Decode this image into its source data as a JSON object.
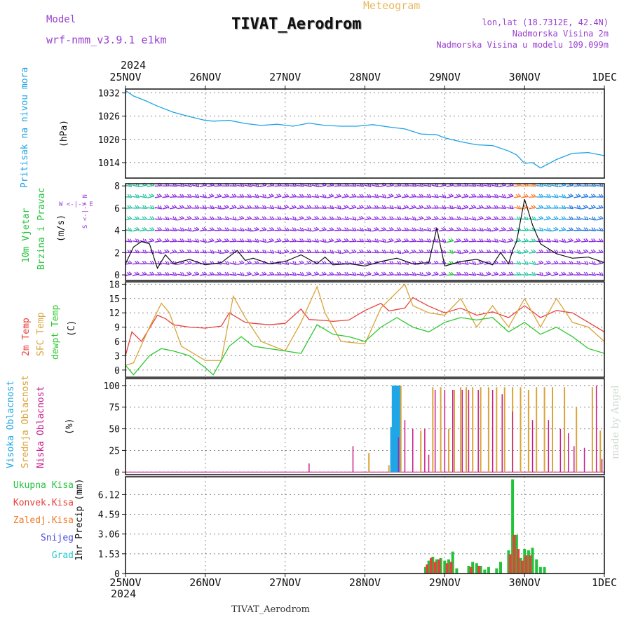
{
  "header": {
    "model_label": "Model",
    "model_name": "wrf-nmm_v3.9.1  e1km",
    "chart_kind": "Meteogram",
    "station_title": "TIVAT_Aerodrom",
    "lonlat": "lon,lat (18.7312E, 42.4N)",
    "elevation": "Nadmorska Visina 2m",
    "model_elevation": "Nadmorska Visina u modelu 109.099m",
    "footer": "TIVAT_Aerodrom",
    "credit": "made by Angel"
  },
  "colors": {
    "pressure": "#1fa3e6",
    "wind_label": "#22c33a",
    "t2m": "#e8403a",
    "sfc": "#d9a43a",
    "dew": "#2ec92e",
    "high_cloud": "#1ea6e6",
    "mid_cloud": "#d9a43a",
    "low_cloud": "#c81e8c",
    "total_precip": "#22c33a",
    "conv_precip": "#e8403a",
    "frz_precip": "#f07a2a",
    "snow": "#4a4ae0",
    "hail": "#22c8c8",
    "title": "#111111",
    "purple": "#9a40d0"
  },
  "time_axis": {
    "year": "2024",
    "ticks": [
      "25NOV",
      "26NOV",
      "27NOV",
      "28NOV",
      "29NOV",
      "30NOV",
      "1DEC"
    ]
  },
  "panels": {
    "pressure": {
      "label": "Pritisak na nivou mora",
      "unit": "(hPa)",
      "ticks": [
        "1032",
        "1026",
        "1020",
        "1014"
      ]
    },
    "wind": {
      "label1": "10m Vjetar",
      "label2": "Brzina i Pravac",
      "unit": "(m/s)",
      "compass": "W <-|-> E",
      "compass_v": "S <-|-> N",
      "ticks": [
        "0",
        "2",
        "4",
        "6",
        "8"
      ]
    },
    "temp": {
      "label1": "2m Temp",
      "label2": "SFC Temp",
      "label3": "dewpt Temp",
      "unit": "(C)",
      "ticks": [
        "0",
        "3",
        "6",
        "9",
        "12",
        "15",
        "18"
      ]
    },
    "cloud": {
      "label1": "Visoka Oblacnost",
      "label2": "Srednja Oblacnost",
      "label3": "Niska Oblacnost",
      "unit": "(%)",
      "ticks": [
        "0",
        "25",
        "50",
        "75",
        "100"
      ]
    },
    "precip": {
      "unit": "1hr Precip (mm)",
      "legend": [
        "Ukupna Kisa",
        "Konvek.Kisa",
        "Zaledj.Kisa",
        "Snijeg",
        "Grad"
      ],
      "ticks": [
        "0",
        "1.53",
        "3.06",
        "4.59",
        "6.12"
      ]
    }
  },
  "chart_data": [
    {
      "type": "line",
      "title": "Pritisak na nivou mora",
      "ylabel": "(hPa)",
      "ylim": [
        1010,
        1033
      ],
      "x_unit": "days since 25NOV 00UTC",
      "series": [
        {
          "x": [
            0,
            0.1,
            0.25,
            0.4,
            0.6,
            0.8,
            1.0,
            1.1,
            1.3,
            1.5,
            1.7,
            1.9,
            2.1,
            2.3,
            2.5,
            2.7,
            2.9,
            3.1,
            3.3,
            3.5,
            3.7,
            3.9,
            4.0,
            4.2,
            4.4,
            4.6,
            4.8,
            4.9,
            5.0,
            5.1,
            5.2,
            5.4,
            5.6,
            5.8,
            6.0
          ],
          "y": [
            1032.6,
            1031.2,
            1030.0,
            1028.6,
            1027.0,
            1025.9,
            1024.9,
            1024.7,
            1024.9,
            1024.1,
            1023.6,
            1023.9,
            1023.4,
            1024.2,
            1023.6,
            1023.4,
            1023.4,
            1023.8,
            1023.2,
            1022.7,
            1021.4,
            1021.2,
            1020.4,
            1019.4,
            1018.6,
            1018.4,
            1017.0,
            1016.0,
            1013.8,
            1014.0,
            1012.6,
            1014.8,
            1016.4,
            1016.6,
            1015.8
          ]
        }
      ]
    },
    {
      "type": "line",
      "title": "10m Vjetar Brzina i Pravac",
      "ylabel": "(m/s)",
      "ylim": [
        -0.5,
        8.2
      ],
      "x_unit": "days since 25NOV 00UTC",
      "series": [
        {
          "x": [
            0,
            0.1,
            0.2,
            0.3,
            0.4,
            0.5,
            0.6,
            0.8,
            1.0,
            1.2,
            1.4,
            1.5,
            1.6,
            1.8,
            2.0,
            2.2,
            2.4,
            2.5,
            2.6,
            2.8,
            3.0,
            3.2,
            3.4,
            3.6,
            3.8,
            3.9,
            4.0,
            4.2,
            4.4,
            4.6,
            4.7,
            4.8,
            4.85,
            4.9,
            5.0,
            5.1,
            5.2,
            5.4,
            5.6,
            5.8,
            6.0
          ],
          "y": [
            1.0,
            2.5,
            3.0,
            2.8,
            0.6,
            1.8,
            1.0,
            1.4,
            0.9,
            1.1,
            2.2,
            1.3,
            1.5,
            1.0,
            1.2,
            1.8,
            1.0,
            1.6,
            0.9,
            1.0,
            0.8,
            1.2,
            1.5,
            1.0,
            1.1,
            4.2,
            0.8,
            1.2,
            1.4,
            0.9,
            2.0,
            1.0,
            2.2,
            3.0,
            6.8,
            4.5,
            2.8,
            1.9,
            1.5,
            1.6,
            1.1
          ]
        }
      ]
    },
    {
      "type": "line",
      "title": "2m Temp / SFC Temp / dewpt Temp",
      "ylabel": "(C)",
      "ylim": [
        -1.5,
        18.5
      ],
      "x_unit": "days since 25NOV 00UTC",
      "series": [
        {
          "name": "2m Temp",
          "x": [
            0,
            0.08,
            0.2,
            0.4,
            0.5,
            0.6,
            0.8,
            1.0,
            1.2,
            1.3,
            1.5,
            1.6,
            1.8,
            2.0,
            2.2,
            2.3,
            2.5,
            2.6,
            2.8,
            3.0,
            3.2,
            3.3,
            3.5,
            3.6,
            3.8,
            4.0,
            4.2,
            4.4,
            4.6,
            4.8,
            5.0,
            5.2,
            5.4,
            5.6,
            5.8,
            6.0
          ],
          "y": [
            3.0,
            8.0,
            6.0,
            11.5,
            10.8,
            9.5,
            9.0,
            8.8,
            9.2,
            12.0,
            10.0,
            9.8,
            9.5,
            9.8,
            12.8,
            10.6,
            10.4,
            10.2,
            10.5,
            12.5,
            14.0,
            12.4,
            13.0,
            15.2,
            13.4,
            12.0,
            13.0,
            11.5,
            12.2,
            11.0,
            13.5,
            11.0,
            12.5,
            12.0,
            10.0,
            8.0
          ]
        },
        {
          "name": "SFC Temp",
          "x": [
            0,
            0.1,
            0.3,
            0.45,
            0.55,
            0.7,
            1.0,
            1.2,
            1.35,
            1.5,
            1.7,
            2.0,
            2.2,
            2.4,
            2.5,
            2.7,
            3.0,
            3.2,
            3.5,
            3.6,
            3.8,
            4.0,
            4.2,
            4.4,
            4.6,
            4.8,
            5.0,
            5.2,
            5.4,
            5.6,
            5.8,
            6.0
          ],
          "y": [
            1.0,
            1.5,
            9.0,
            14.0,
            12.0,
            5.0,
            2.0,
            2.0,
            15.5,
            11.0,
            6.0,
            4.0,
            10.0,
            17.5,
            12.0,
            6.0,
            5.5,
            13.0,
            18.0,
            13.5,
            12.0,
            11.5,
            15.0,
            9.0,
            13.5,
            9.0,
            15.0,
            9.0,
            15.0,
            10.0,
            9.0,
            6.0
          ]
        },
        {
          "name": "dewpt Temp",
          "x": [
            0,
            0.1,
            0.3,
            0.45,
            0.6,
            0.8,
            1.0,
            1.1,
            1.3,
            1.45,
            1.6,
            1.8,
            2.0,
            2.2,
            2.4,
            2.6,
            2.8,
            3.0,
            3.2,
            3.4,
            3.6,
            3.8,
            4.0,
            4.2,
            4.4,
            4.6,
            4.8,
            5.0,
            5.2,
            5.4,
            5.6,
            5.8,
            6.0
          ],
          "y": [
            1.0,
            -1.0,
            3.0,
            4.5,
            4.0,
            3.0,
            0.5,
            -1.0,
            5.0,
            7.0,
            5.0,
            4.5,
            4.0,
            3.5,
            9.5,
            7.5,
            7.0,
            6.0,
            9.0,
            11.0,
            9.0,
            8.0,
            10.0,
            11.0,
            10.5,
            11.0,
            8.0,
            10.0,
            7.5,
            9.0,
            7.0,
            4.5,
            3.5
          ]
        }
      ]
    },
    {
      "type": "bar",
      "title": "Visoka / Srednja / Niska Oblacnost",
      "ylabel": "(%)",
      "ylim": [
        0,
        100
      ],
      "x_unit": "days since 25NOV 00UTC",
      "series": [
        {
          "name": "Visoka Oblacnost",
          "x": [
            3.33,
            3.35,
            3.37,
            3.39,
            3.41,
            3.43
          ],
          "values": [
            52,
            100,
            100,
            100,
            100,
            100
          ]
        },
        {
          "name": "Srednja Oblacnost",
          "x": [
            3.05,
            3.3,
            3.45,
            3.7,
            3.85,
            3.95,
            4.05,
            4.12,
            4.2,
            4.27,
            4.35,
            4.45,
            4.55,
            4.65,
            4.75,
            4.85,
            4.95,
            5.05,
            5.15,
            5.25,
            5.35,
            5.5,
            5.65,
            5.85,
            5.95
          ],
          "values": [
            22,
            8,
            100,
            48,
            98,
            98,
            50,
            95,
            98,
            98,
            98,
            98,
            98,
            98,
            98,
            98,
            98,
            95,
            98,
            98,
            98,
            98,
            75,
            98,
            48
          ]
        },
        {
          "name": "Niska Oblacnost",
          "x": [
            2.3,
            2.85,
            3.42,
            3.5,
            3.6,
            3.75,
            3.8,
            3.88,
            4.0,
            4.1,
            4.22,
            4.3,
            4.42,
            4.6,
            4.72,
            4.85,
            5.1,
            5.3,
            5.45,
            5.55,
            5.62,
            5.75,
            5.9,
            5.97
          ],
          "values": [
            10,
            30,
            40,
            60,
            50,
            50,
            20,
            95,
            95,
            95,
            95,
            95,
            95,
            95,
            90,
            70,
            60,
            60,
            50,
            45,
            30,
            28,
            100,
            15
          ]
        }
      ]
    },
    {
      "type": "bar",
      "title": "1hr Precip (mm)",
      "ylabel": "1hr Precip (mm)",
      "ylim": [
        0,
        7.5
      ],
      "x_unit": "days since 25NOV 00UTC",
      "series": [
        {
          "name": "Ukupna Kisa",
          "x": [
            3.76,
            3.8,
            3.85,
            3.9,
            3.95,
            4.0,
            4.05,
            4.1,
            4.15,
            4.3,
            4.35,
            4.4,
            4.45,
            4.5,
            4.55,
            4.65,
            4.7,
            4.8,
            4.85,
            4.9,
            4.95,
            5.0,
            5.05,
            5.1,
            5.15,
            5.2,
            5.25
          ],
          "values": [
            0.5,
            1.0,
            1.3,
            1.1,
            1.2,
            1.0,
            1.1,
            1.7,
            0.4,
            0.6,
            0.9,
            0.8,
            0.6,
            0.3,
            0.5,
            0.4,
            0.9,
            1.8,
            7.3,
            3.0,
            1.2,
            1.9,
            1.8,
            2.0,
            1.1,
            0.5,
            0.5
          ]
        },
        {
          "name": "Konvek.Kisa",
          "x": [
            3.78,
            3.83,
            3.88,
            3.93,
            4.03,
            4.08,
            4.33,
            4.43,
            4.82,
            4.87,
            4.92,
            4.97,
            5.02,
            5.07
          ],
          "values": [
            0.7,
            1.2,
            0.9,
            1.1,
            0.8,
            0.9,
            0.5,
            0.6,
            1.5,
            3.0,
            1.9,
            1.0,
            1.4,
            1.4
          ]
        },
        {
          "name": "Zaledj.Kisa",
          "x": [],
          "values": []
        },
        {
          "name": "Snijeg",
          "x": [],
          "values": []
        },
        {
          "name": "Grad",
          "x": [],
          "values": []
        }
      ]
    }
  ]
}
